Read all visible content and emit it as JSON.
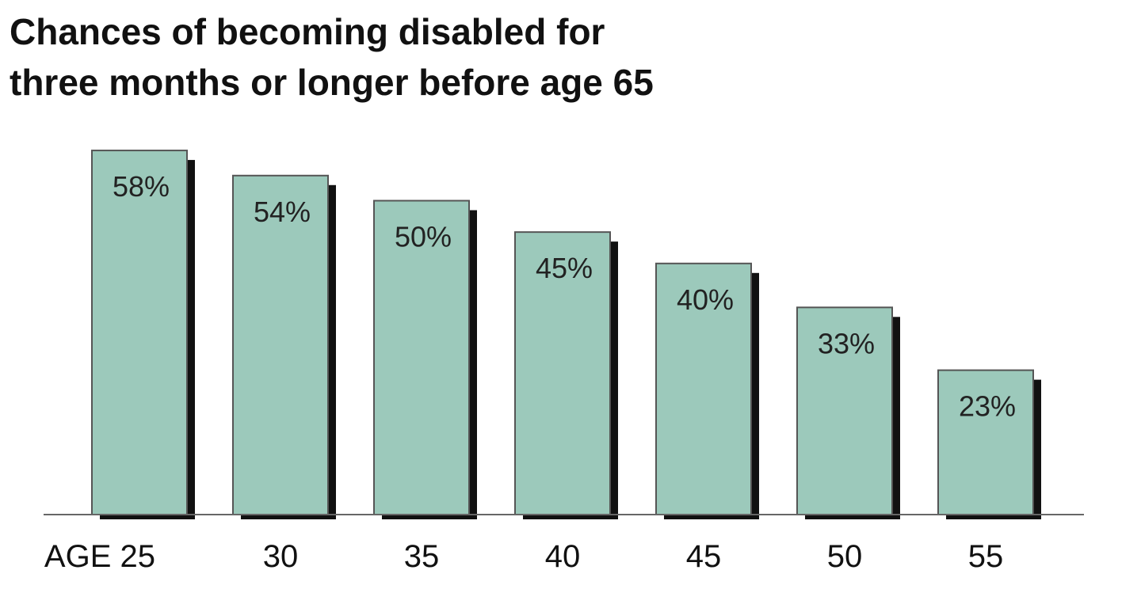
{
  "chart_data": {
    "type": "bar",
    "title": [
      "Chances of becoming disabled for",
      "three months or longer before age 65"
    ],
    "categories": [
      "AGE 25",
      "30",
      "35",
      "40",
      "45",
      "50",
      "55"
    ],
    "values": [
      58,
      54,
      50,
      45,
      40,
      33,
      23
    ],
    "value_labels": [
      "58%",
      "54%",
      "50%",
      "45%",
      "40%",
      "33%",
      "23%"
    ],
    "color": "#9cc9bb"
  }
}
